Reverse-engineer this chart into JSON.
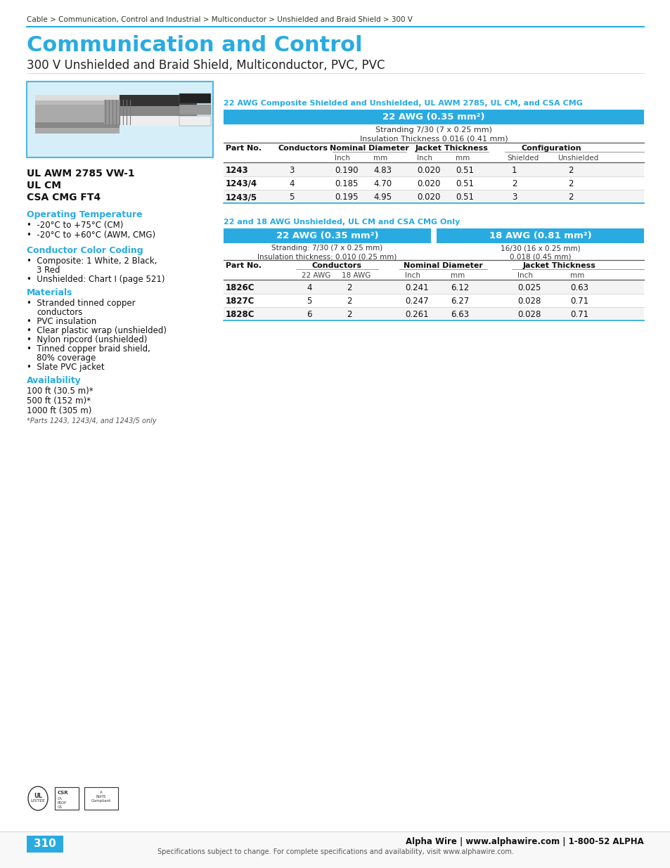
{
  "page_bg": "#ffffff",
  "cyan": "#29abe2",
  "light_cyan_bg": "#d6eef8",
  "breadcrumb": "Cable > Communication, Control and Industrial > Multiconductor > Unshielded and Braid Shield > 300 V",
  "title": "Communication and Control",
  "subtitle": "300 V Unshielded and Braid Shield, Multiconductor, PVC, PVC",
  "cert_lines": [
    "UL AWM 2785 VW-1",
    "UL CM",
    "CSA CMG FT4"
  ],
  "op_temp_title": "Operating Temperature",
  "op_temp_items": [
    "-20°C to +75°C (CM)",
    "-20°C to +60°C (AWM, CMG)"
  ],
  "color_coding_title": "Conductor Color Coding",
  "materials_title": "Materials",
  "avail_title": "Availability",
  "avail_items": [
    "100 ft (30.5 m)*",
    "500 ft (152 m)*",
    "1000 ft (305 m)"
  ],
  "avail_note": "*Parts 1243, 1243/4, and 1243/5 only",
  "table1_section_title": "22 AWG Composite Shielded and Unshielded, UL AWM 2785, UL CM, and CSA CMG",
  "table1_awg": "22 AWG (0.35 mm²)",
  "table1_stranding1": "Stranding 7/30 (7 x 0.25 mm)",
  "table1_stranding2": "Insulation Thickness 0.016 (0.41 mm)",
  "table1_data": [
    [
      "1243",
      "3",
      "0.190",
      "4.83",
      "0.020",
      "0.51",
      "1",
      "2"
    ],
    [
      "1243/4",
      "4",
      "0.185",
      "4.70",
      "0.020",
      "0.51",
      "2",
      "2"
    ],
    [
      "1243/5",
      "5",
      "0.195",
      "4.95",
      "0.020",
      "0.51",
      "3",
      "2"
    ]
  ],
  "table2_section_title": "22 and 18 AWG Unshielded, UL CM and CSA CMG Only",
  "table2_awg22": "22 AWG (0.35 mm²)",
  "table2_awg18": "18 AWG (0.81 mm²)",
  "table2_strand22_1": "Stranding: 7/30 (7 x 0.25 mm)",
  "table2_strand22_2": "Insulation thickness: 0.010 (0.25 mm)",
  "table2_strand18_1": "16/30 (16 x 0.25 mm)",
  "table2_strand18_2": "0.018 (0.45 mm)",
  "table2_data": [
    [
      "1826C",
      "4",
      "2",
      "0.241",
      "6.12",
      "0.025",
      "0.63"
    ],
    [
      "1827C",
      "5",
      "2",
      "0.247",
      "6.27",
      "0.028",
      "0.71"
    ],
    [
      "1828C",
      "6",
      "2",
      "0.261",
      "6.63",
      "0.028",
      "0.71"
    ]
  ],
  "footer_page": "310",
  "footer_company": "Alpha Wire | www.alphawire.com | 1-800-52 ALPHA",
  "footer_note": "Specifications subject to change. For complete specifications and availability, visit www.alphawire.com."
}
